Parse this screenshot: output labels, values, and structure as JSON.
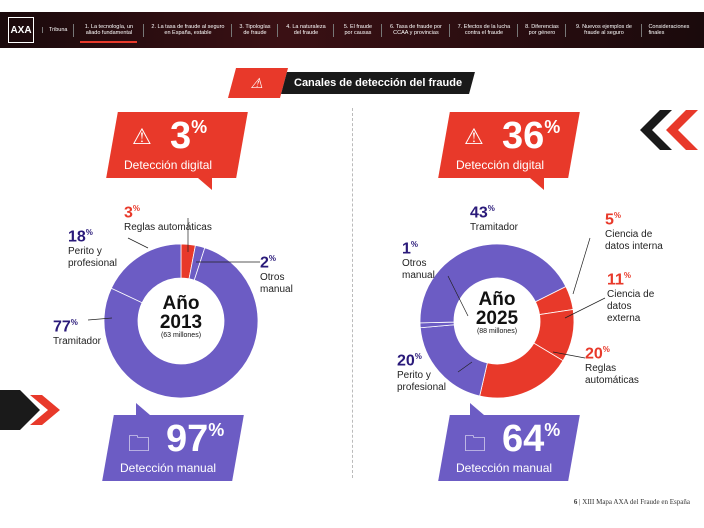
{
  "nav": {
    "logo": "AXA",
    "items": [
      "Tribuna",
      "1. La tecnología, un aliado fundamental",
      "2. La tasa de fraude al seguro en España, estable",
      "3. Tipologías de fraude",
      "4. La naturaleza del fraude",
      "5. El fraude por causas",
      "6. Tasa de fraude por CCAA y provincias",
      "7. Efectos de la lucha contra el fraude",
      "8. Diferencias por género",
      "9. Nuevos ejemplos de fraude al seguro",
      "Consideraciones finales"
    ],
    "active": 1
  },
  "title": "Canales de detección del fraude",
  "left": {
    "digital": {
      "value": "3",
      "unit": "%",
      "label": "Detección digital"
    },
    "manual": {
      "value": "97",
      "unit": "%",
      "label": "Detección manual"
    },
    "year": "Año",
    "year_value": "2013",
    "total": "(63 millones)",
    "segments": [
      {
        "value": "3",
        "label": "Reglas automáticas",
        "type": "digital"
      },
      {
        "value": "2",
        "label": "Otros manual",
        "type": "manual"
      },
      {
        "value": "77",
        "label": "Tramitador",
        "type": "manual"
      },
      {
        "value": "18",
        "label": "Perito y profesional",
        "type": "manual"
      }
    ]
  },
  "right": {
    "digital": {
      "value": "36",
      "unit": "%",
      "label": "Detección digital"
    },
    "manual": {
      "value": "64",
      "unit": "%",
      "label": "Detección manual"
    },
    "year": "Año",
    "year_value": "2025",
    "total": "(88 millones)",
    "segments": [
      {
        "value": "5",
        "label": "Ciencia de datos interna",
        "type": "digital"
      },
      {
        "value": "11",
        "label": "Ciencia de datos externa",
        "type": "digital"
      },
      {
        "value": "20",
        "label": "Reglas automáticas",
        "type": "digital"
      },
      {
        "value": "20",
        "label": "Perito y profesional",
        "type": "manual"
      },
      {
        "value": "1",
        "label": "Otros manual",
        "type": "manual"
      },
      {
        "value": "43",
        "label": "Tramitador",
        "type": "manual"
      }
    ]
  },
  "colors": {
    "digital": "#e8392a",
    "manual": "#6c5cc4"
  },
  "footer": {
    "page": "6",
    "text": "XIII Mapa AXA del Fraude en España"
  }
}
